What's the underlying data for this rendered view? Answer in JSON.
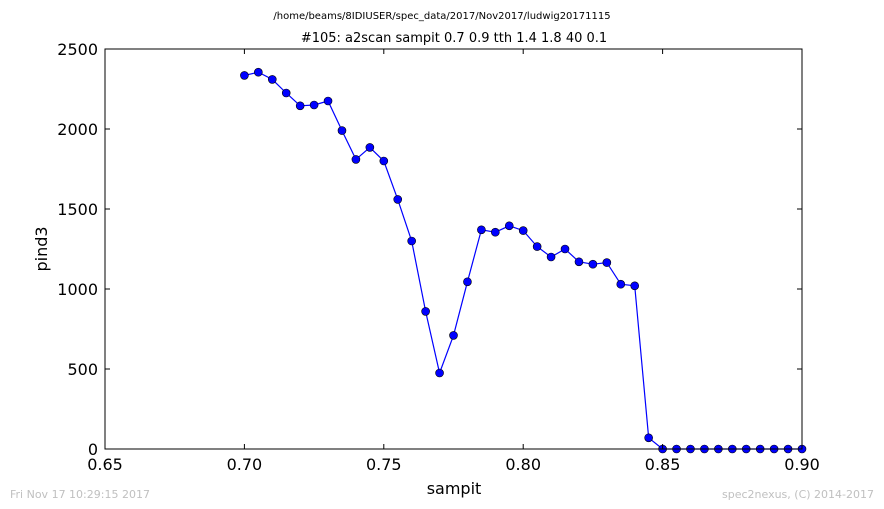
{
  "chart_data": {
    "type": "line",
    "suptitle": "/home/beams/8IDIUSER/spec_data/2017/Nov2017/ludwig20171115",
    "title": "#105: a2scan  sampit 0.7 0.9  tth 1.4 1.8  40 0.1",
    "xlabel": "sampit",
    "ylabel": "pind3",
    "xlim": [
      0.65,
      0.9
    ],
    "ylim": [
      0,
      2500
    ],
    "xticks": [
      "0.65",
      "0.70",
      "0.75",
      "0.80",
      "0.85",
      "0.90"
    ],
    "yticks": [
      "0",
      "500",
      "1000",
      "1500",
      "2000",
      "2500"
    ],
    "grid": false,
    "marker": "circle",
    "line_color": "#0000ff",
    "series": [
      {
        "x": [
          0.7,
          0.705,
          0.71,
          0.715,
          0.72,
          0.725,
          0.73,
          0.735,
          0.74,
          0.745,
          0.75,
          0.755,
          0.76,
          0.765,
          0.77,
          0.775,
          0.78,
          0.785,
          0.79,
          0.795,
          0.8,
          0.805,
          0.81,
          0.815,
          0.82,
          0.825,
          0.83,
          0.835,
          0.84,
          0.845,
          0.85,
          0.855,
          0.86,
          0.865,
          0.87,
          0.875,
          0.88,
          0.885,
          0.89,
          0.895,
          0.9
        ],
        "y": [
          2335,
          2355,
          2310,
          2225,
          2145,
          2150,
          2175,
          1990,
          1810,
          1885,
          1800,
          1560,
          1300,
          860,
          475,
          710,
          1045,
          1370,
          1355,
          1395,
          1365,
          1265,
          1200,
          1250,
          1170,
          1155,
          1165,
          1030,
          1020,
          70,
          0,
          0,
          0,
          0,
          0,
          0,
          0,
          0,
          0,
          0,
          0
        ]
      }
    ]
  },
  "footer": {
    "left": "Fri Nov 17 10:29:15 2017",
    "right": "spec2nexus, (C) 2014-2017"
  }
}
